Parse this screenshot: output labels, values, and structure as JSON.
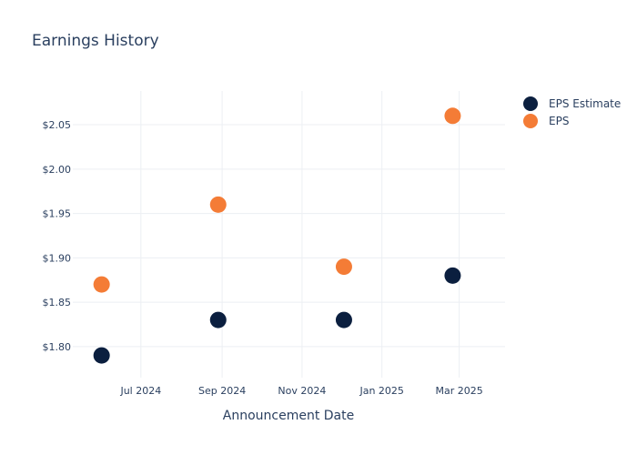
{
  "chart_data": {
    "type": "scatter",
    "title": "Earnings History",
    "xlabel": "Announcement Date",
    "ylabel": "",
    "x_ticks": [
      {
        "date": "2024-07-01",
        "label": "Jul 2024"
      },
      {
        "date": "2024-09-01",
        "label": "Sep 2024"
      },
      {
        "date": "2024-11-01",
        "label": "Nov 2024"
      },
      {
        "date": "2025-01-01",
        "label": "Jan 2025"
      },
      {
        "date": "2025-03-01",
        "label": "Mar 2025"
      }
    ],
    "y_ticks": [
      {
        "value": 1.8,
        "label": "$1.80"
      },
      {
        "value": 1.85,
        "label": "$1.85"
      },
      {
        "value": 1.9,
        "label": "$1.90"
      },
      {
        "value": 1.95,
        "label": "$1.95"
      },
      {
        "value": 2.0,
        "label": "$2.00"
      },
      {
        "value": 2.05,
        "label": "$2.05"
      }
    ],
    "xlim": [
      "2024-05-10",
      "2025-04-05"
    ],
    "ylim": [
      1.765,
      2.088
    ],
    "grid": true,
    "legend_position": "top-right",
    "series": [
      {
        "name": "EPS Estimate",
        "color": "#0b1f3f",
        "points": [
          {
            "x": "2024-06-01",
            "y": 1.79
          },
          {
            "x": "2024-08-29",
            "y": 1.83
          },
          {
            "x": "2024-12-03",
            "y": 1.83
          },
          {
            "x": "2025-02-24",
            "y": 1.88
          }
        ]
      },
      {
        "name": "EPS",
        "color": "#f47c36",
        "points": [
          {
            "x": "2024-06-01",
            "y": 1.87
          },
          {
            "x": "2024-08-29",
            "y": 1.96
          },
          {
            "x": "2024-12-03",
            "y": 1.89
          },
          {
            "x": "2025-02-24",
            "y": 2.06
          }
        ]
      }
    ]
  }
}
